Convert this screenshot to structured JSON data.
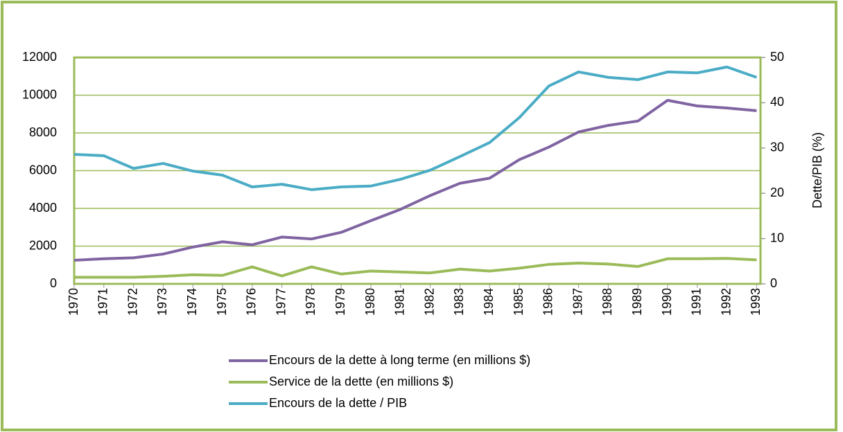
{
  "chart_data": {
    "type": "line",
    "y2label": "Dette/PIB (%)",
    "categories": [
      "1970",
      "1971",
      "1972",
      "1973",
      "1974",
      "1975",
      "1976",
      "1977",
      "1978",
      "1979",
      "1980",
      "1981",
      "1982",
      "1983",
      "1984",
      "1985",
      "1986",
      "1987",
      "1988",
      "1989",
      "1990",
      "1991",
      "1992",
      "1993"
    ],
    "series": [
      {
        "name": "Encours de la dette à long terme (en millions $)",
        "color": "#8064a2",
        "axis": "y",
        "values": [
          1250,
          1330,
          1380,
          1580,
          1950,
          2230,
          2070,
          2480,
          2380,
          2730,
          3350,
          3950,
          4680,
          5330,
          5600,
          6580,
          7250,
          8050,
          8400,
          8630,
          9730,
          9430,
          9320,
          9180
        ]
      },
      {
        "name": "Service de la dette (en millions $)",
        "color": "#9bbb59",
        "axis": "y",
        "values": [
          350,
          350,
          350,
          400,
          480,
          450,
          900,
          420,
          900,
          520,
          680,
          630,
          580,
          780,
          680,
          830,
          1030,
          1100,
          1050,
          920,
          1330,
          1330,
          1350,
          1270
        ]
      },
      {
        "name": "Encours de la dette / PIB",
        "color": "#4bacc6",
        "axis": "y2",
        "values": [
          28.6,
          28.3,
          25.5,
          26.6,
          24.9,
          24.0,
          21.4,
          22.0,
          20.8,
          21.4,
          21.6,
          23.1,
          25.1,
          28.1,
          31.2,
          36.7,
          43.7,
          46.8,
          45.6,
          45.1,
          46.8,
          46.6,
          47.9,
          45.6
        ]
      }
    ],
    "ylim": [
      0,
      12000
    ],
    "yticks": [
      0,
      2000,
      4000,
      6000,
      8000,
      10000,
      12000
    ],
    "y2lim": [
      0,
      50
    ],
    "y2ticks": [
      0,
      10,
      20,
      30,
      40,
      50
    ],
    "grid": true
  }
}
